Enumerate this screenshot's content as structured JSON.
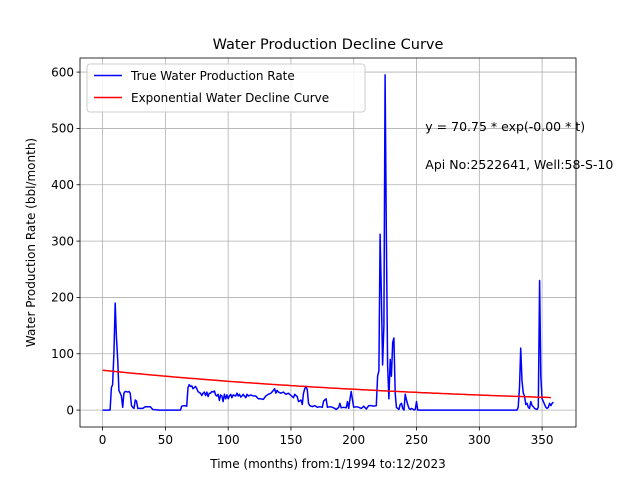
{
  "chart_data": {
    "type": "line",
    "title": "Water Production Decline Curve",
    "xlabel": "Time (months) from:1/1994 to:12/2023",
    "ylabel": "Water Production Rate (bbl/month)",
    "xlim": [
      -18,
      377
    ],
    "ylim": [
      -30,
      625
    ],
    "xticks": [
      0,
      50,
      100,
      150,
      200,
      250,
      300,
      350
    ],
    "yticks": [
      0,
      100,
      200,
      300,
      400,
      500,
      600
    ],
    "grid": true,
    "legend_position": "top-left",
    "colors": {
      "true_rate": "#0000ff",
      "decline_curve": "#ff0000"
    },
    "annotations": [
      {
        "text": "y = 70.75 * exp(-0.00 * t)",
        "x": 257,
        "y": 495
      },
      {
        "text": "Api No:2522641, Well:58-S-10",
        "x": 257,
        "y": 428
      }
    ],
    "series": [
      {
        "name": "True Water Production Rate",
        "points": [
          [
            0,
            0
          ],
          [
            6,
            0
          ],
          [
            7,
            40
          ],
          [
            8,
            45
          ],
          [
            9,
            100
          ],
          [
            10,
            190
          ],
          [
            11,
            130
          ],
          [
            12,
            90
          ],
          [
            13,
            35
          ],
          [
            14,
            30
          ],
          [
            15,
            25
          ],
          [
            16,
            5
          ],
          [
            17,
            30
          ],
          [
            18,
            33
          ],
          [
            19,
            33
          ],
          [
            20,
            32
          ],
          [
            21,
            33
          ],
          [
            22,
            30
          ],
          [
            23,
            8
          ],
          [
            24,
            5
          ],
          [
            25,
            3
          ],
          [
            26,
            18
          ],
          [
            27,
            16
          ],
          [
            28,
            3
          ],
          [
            29,
            3
          ],
          [
            32,
            3
          ],
          [
            34,
            6
          ],
          [
            36,
            6
          ],
          [
            38,
            6
          ],
          [
            40,
            1
          ],
          [
            45,
            0
          ],
          [
            50,
            0
          ],
          [
            60,
            0
          ],
          [
            62,
            0
          ],
          [
            63,
            7
          ],
          [
            65,
            8
          ],
          [
            67,
            7
          ],
          [
            68,
            40
          ],
          [
            69,
            45
          ],
          [
            70,
            42
          ],
          [
            71,
            43
          ],
          [
            72,
            38
          ],
          [
            73,
            40
          ],
          [
            74,
            42
          ],
          [
            75,
            38
          ],
          [
            76,
            33
          ],
          [
            77,
            31
          ],
          [
            78,
            30
          ],
          [
            79,
            26
          ],
          [
            80,
            30
          ],
          [
            81,
            32
          ],
          [
            82,
            26
          ],
          [
            83,
            32
          ],
          [
            84,
            24
          ],
          [
            85,
            30
          ],
          [
            86,
            30
          ],
          [
            87,
            33
          ],
          [
            88,
            32
          ],
          [
            89,
            34
          ],
          [
            90,
            27
          ],
          [
            91,
            25
          ],
          [
            92,
            28
          ],
          [
            93,
            17
          ],
          [
            94,
            27
          ],
          [
            95,
            25
          ],
          [
            96,
            15
          ],
          [
            97,
            28
          ],
          [
            98,
            20
          ],
          [
            99,
            27
          ],
          [
            100,
            20
          ],
          [
            101,
            25
          ],
          [
            102,
            28
          ],
          [
            103,
            22
          ],
          [
            104,
            27
          ],
          [
            105,
            26
          ],
          [
            106,
            25
          ],
          [
            107,
            30
          ],
          [
            108,
            25
          ],
          [
            109,
            28
          ],
          [
            110,
            23
          ],
          [
            111,
            25
          ],
          [
            112,
            28
          ],
          [
            113,
            25
          ],
          [
            114,
            22
          ],
          [
            115,
            28
          ],
          [
            116,
            25
          ],
          [
            117,
            26
          ],
          [
            118,
            27
          ],
          [
            120,
            25
          ],
          [
            122,
            25
          ],
          [
            124,
            20
          ],
          [
            126,
            20
          ],
          [
            128,
            19
          ],
          [
            130,
            25
          ],
          [
            132,
            28
          ],
          [
            134,
            30
          ],
          [
            136,
            35
          ],
          [
            137,
            38
          ],
          [
            138,
            30
          ],
          [
            139,
            35
          ],
          [
            140,
            32
          ],
          [
            142,
            30
          ],
          [
            144,
            32
          ],
          [
            146,
            28
          ],
          [
            148,
            30
          ],
          [
            150,
            26
          ],
          [
            152,
            22
          ],
          [
            153,
            28
          ],
          [
            155,
            24
          ],
          [
            156,
            15
          ],
          [
            158,
            18
          ],
          [
            159,
            10
          ],
          [
            160,
            30
          ],
          [
            161,
            38
          ],
          [
            162,
            42
          ],
          [
            163,
            36
          ],
          [
            164,
            12
          ],
          [
            165,
            8
          ],
          [
            167,
            6
          ],
          [
            169,
            8
          ],
          [
            171,
            5
          ],
          [
            173,
            6
          ],
          [
            175,
            5
          ],
          [
            176,
            16
          ],
          [
            178,
            20
          ],
          [
            179,
            5
          ],
          [
            181,
            6
          ],
          [
            183,
            5
          ],
          [
            185,
            3
          ],
          [
            186,
            1
          ],
          [
            188,
            5
          ],
          [
            189,
            12
          ],
          [
            190,
            4
          ],
          [
            192,
            5
          ],
          [
            194,
            4
          ],
          [
            195,
            15
          ],
          [
            196,
            3
          ],
          [
            197,
            20
          ],
          [
            198,
            33
          ],
          [
            199,
            18
          ],
          [
            200,
            5
          ],
          [
            202,
            6
          ],
          [
            204,
            5
          ],
          [
            206,
            3
          ],
          [
            208,
            7
          ],
          [
            210,
            2
          ],
          [
            212,
            8
          ],
          [
            214,
            8
          ],
          [
            216,
            7
          ],
          [
            218,
            8
          ],
          [
            219,
            60
          ],
          [
            220,
            70
          ],
          [
            221,
            312
          ],
          [
            222,
            200
          ],
          [
            223,
            80
          ],
          [
            224,
            150
          ],
          [
            225,
            595
          ],
          [
            226,
            300
          ],
          [
            227,
            80
          ],
          [
            228,
            20
          ],
          [
            229,
            90
          ],
          [
            230,
            60
          ],
          [
            231,
            120
          ],
          [
            232,
            128
          ],
          [
            233,
            30
          ],
          [
            234,
            5
          ],
          [
            235,
            3
          ],
          [
            236,
            1
          ],
          [
            237,
            10
          ],
          [
            238,
            12
          ],
          [
            239,
            3
          ],
          [
            240,
            0
          ],
          [
            241,
            28
          ],
          [
            242,
            18
          ],
          [
            243,
            10
          ],
          [
            244,
            3
          ],
          [
            245,
            1
          ],
          [
            246,
            3
          ],
          [
            247,
            2
          ],
          [
            248,
            0
          ],
          [
            249,
            1
          ],
          [
            250,
            15
          ],
          [
            251,
            0
          ],
          [
            260,
            0
          ],
          [
            280,
            0
          ],
          [
            300,
            0
          ],
          [
            320,
            0
          ],
          [
            330,
            0
          ],
          [
            331,
            5
          ],
          [
            332,
            40
          ],
          [
            333,
            110
          ],
          [
            334,
            52
          ],
          [
            335,
            30
          ],
          [
            336,
            25
          ],
          [
            337,
            10
          ],
          [
            338,
            12
          ],
          [
            339,
            5
          ],
          [
            340,
            3
          ],
          [
            341,
            15
          ],
          [
            342,
            8
          ],
          [
            343,
            6
          ],
          [
            344,
            3
          ],
          [
            345,
            2
          ],
          [
            346,
            1
          ],
          [
            347,
            5
          ],
          [
            348,
            230
          ],
          [
            349,
            60
          ],
          [
            350,
            20
          ],
          [
            351,
            15
          ],
          [
            352,
            10
          ],
          [
            353,
            5
          ],
          [
            354,
            3
          ],
          [
            355,
            5
          ],
          [
            356,
            12
          ],
          [
            357,
            8
          ],
          [
            358,
            12
          ],
          [
            359,
            14
          ]
        ]
      },
      {
        "name": "Exponential Water Decline Curve",
        "function": {
          "a": 70.75,
          "b": 0.00324
        },
        "x_range": [
          0,
          359
        ]
      }
    ]
  }
}
